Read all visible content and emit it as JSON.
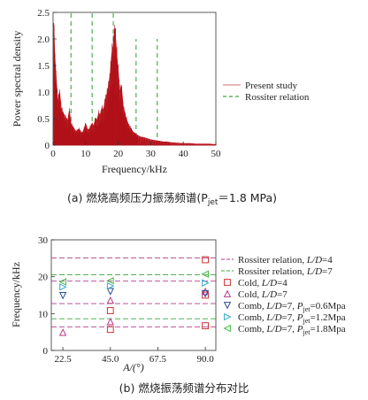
{
  "chart_data": [
    {
      "type": "line",
      "xlabel": "Frequency/kHz",
      "ylabel": "Power spectral density",
      "xlim": [
        0,
        50
      ],
      "ylim": [
        0,
        2.5
      ],
      "xticks": [
        "0",
        "10",
        "20",
        "30",
        "40",
        "50"
      ],
      "yticks": [
        "0",
        "0.5",
        "1.0",
        "1.5",
        "2.0",
        "2.5"
      ],
      "legend_position": "right",
      "legend": [
        "Present study",
        "Rossiter relation"
      ],
      "series": [
        {
          "name": "Present study",
          "color": "#c0141c",
          "x": [
            0.2,
            0.5,
            1,
            1.5,
            2,
            2.5,
            3,
            3.5,
            4,
            4.5,
            5,
            5.5,
            6,
            6.5,
            7,
            7.5,
            8,
            8.5,
            9,
            9.5,
            10,
            10.5,
            11,
            11.5,
            12,
            12.5,
            13,
            13.5,
            14,
            14.5,
            15,
            15.5,
            16,
            16.5,
            17,
            17.5,
            18,
            18.5,
            19,
            19.5,
            20,
            20.5,
            21,
            21.5,
            22,
            22.5,
            23,
            23.5,
            24,
            24.5,
            25,
            25.5,
            26,
            27,
            28,
            29,
            30,
            31,
            32,
            33,
            34,
            35,
            36,
            38,
            40,
            42,
            44,
            46,
            48,
            50
          ],
          "values": [
            2.3,
            1.7,
            1.2,
            0.8,
            1.0,
            0.7,
            0.6,
            0.55,
            0.5,
            0.45,
            0.65,
            0.4,
            0.35,
            0.3,
            0.25,
            0.28,
            0.3,
            0.25,
            0.22,
            0.3,
            0.4,
            0.3,
            0.28,
            0.35,
            0.4,
            0.35,
            0.5,
            0.45,
            0.6,
            0.55,
            0.7,
            0.65,
            0.85,
            0.95,
            1.1,
            1.3,
            1.7,
            1.9,
            2.2,
            1.75,
            1.4,
            1.0,
            1.1,
            0.75,
            0.6,
            0.5,
            0.4,
            0.35,
            0.3,
            0.25,
            0.22,
            0.2,
            0.18,
            0.15,
            0.14,
            0.12,
            0.1,
            0.09,
            0.08,
            0.07,
            0.06,
            0.06,
            0.05,
            0.04,
            0.03,
            0.03,
            0.02,
            0.02,
            0.02,
            0.01
          ]
        },
        {
          "name": "Rossiter relation",
          "color": "#3aa83a",
          "dashed": true,
          "x": [
            5.5,
            12,
            18.5,
            25.5,
            32
          ],
          "values": [
            2.5,
            2.5,
            2.5,
            2.0,
            2.0
          ]
        }
      ],
      "caption": "(a) 燃烧高频压力振荡频谱(P",
      "caption_sub": "jet",
      "caption_tail": "＝1.8 MPa)"
    },
    {
      "type": "scatter",
      "xlabel": "A/(°)",
      "ylabel": "Frequency/kHz",
      "xlim": [
        17,
        95
      ],
      "ylim": [
        0,
        30
      ],
      "xticks": [
        "22.5",
        "45.0",
        "67.5",
        "90.0"
      ],
      "xtick_values": [
        22.5,
        45,
        67.5,
        90
      ],
      "yticks": [
        "0",
        "10",
        "20",
        "30"
      ],
      "ytick_values": [
        0,
        10,
        20,
        30
      ],
      "legend_position": "right",
      "reference_lines": [
        {
          "name": "Rossiter relation, L/D=4",
          "color": "#b43a8c",
          "values": [
            6.4,
            12.7,
            18.8,
            25.1
          ]
        },
        {
          "name": "Rossiter relation, L/D=7",
          "color": "#3aa83a",
          "values": [
            8.6,
            20.5
          ]
        }
      ],
      "series": [
        {
          "name": "Cold, L/D=4",
          "marker": "square",
          "color": "#cc3333",
          "x": [
            45,
            45,
            90,
            90,
            90
          ],
          "values": [
            5.7,
            10.8,
            24.6,
            15.0,
            6.7
          ]
        },
        {
          "name": "Cold, L/D=7",
          "marker": "triangle-up",
          "color": "#b43a8c",
          "x": [
            22.5,
            45,
            45,
            90
          ],
          "values": [
            4.9,
            7.8,
            13.6,
            16.0
          ]
        },
        {
          "name": "Comb, L/D=7, Pjet=0.6Mpa",
          "marker": "triangle-down",
          "color": "#2a4a9a",
          "x": [
            22.5,
            45,
            90
          ],
          "values": [
            14.9,
            16.0,
            15.4
          ]
        },
        {
          "name": "Comb, L/D=7, Pjet=1.2Mpa",
          "marker": "triangle-right",
          "color": "#33aacc",
          "x": [
            22.5,
            45,
            90
          ],
          "values": [
            17.2,
            17.5,
            18.3
          ]
        },
        {
          "name": "Comb, L/D=7, Pjet=1.8Mpa",
          "marker": "triangle-left",
          "color": "#44bb44",
          "x": [
            22.5,
            45,
            90
          ],
          "values": [
            18.6,
            18.9,
            20.7
          ]
        }
      ],
      "legend": [
        {
          "pre": "Rossiter relation, ",
          "it": "L/D",
          "post": "=4"
        },
        {
          "pre": "Rossiter relation, ",
          "it": "L/D",
          "post": "=7"
        },
        {
          "pre": "Cold, ",
          "it": "L/D",
          "post": "=4"
        },
        {
          "pre": "Cold, ",
          "it": "L/D",
          "post": "=7"
        },
        {
          "pre": "Comb, ",
          "it": "L/D",
          "post": "=7, ",
          "p": "P",
          "sub": "jet",
          "post2": "=0.6Mpa"
        },
        {
          "pre": "Comb, ",
          "it": "L/D",
          "post": "=7, ",
          "p": "P",
          "sub": "jet",
          "post2": "=1.2Mpa"
        },
        {
          "pre": "Comb, ",
          "it": "L/D",
          "post": "=7, ",
          "p": "P",
          "sub": "jet",
          "post2": "=1.8Mpa"
        }
      ],
      "caption": "(b) 燃烧振荡频谱分布对比"
    }
  ]
}
